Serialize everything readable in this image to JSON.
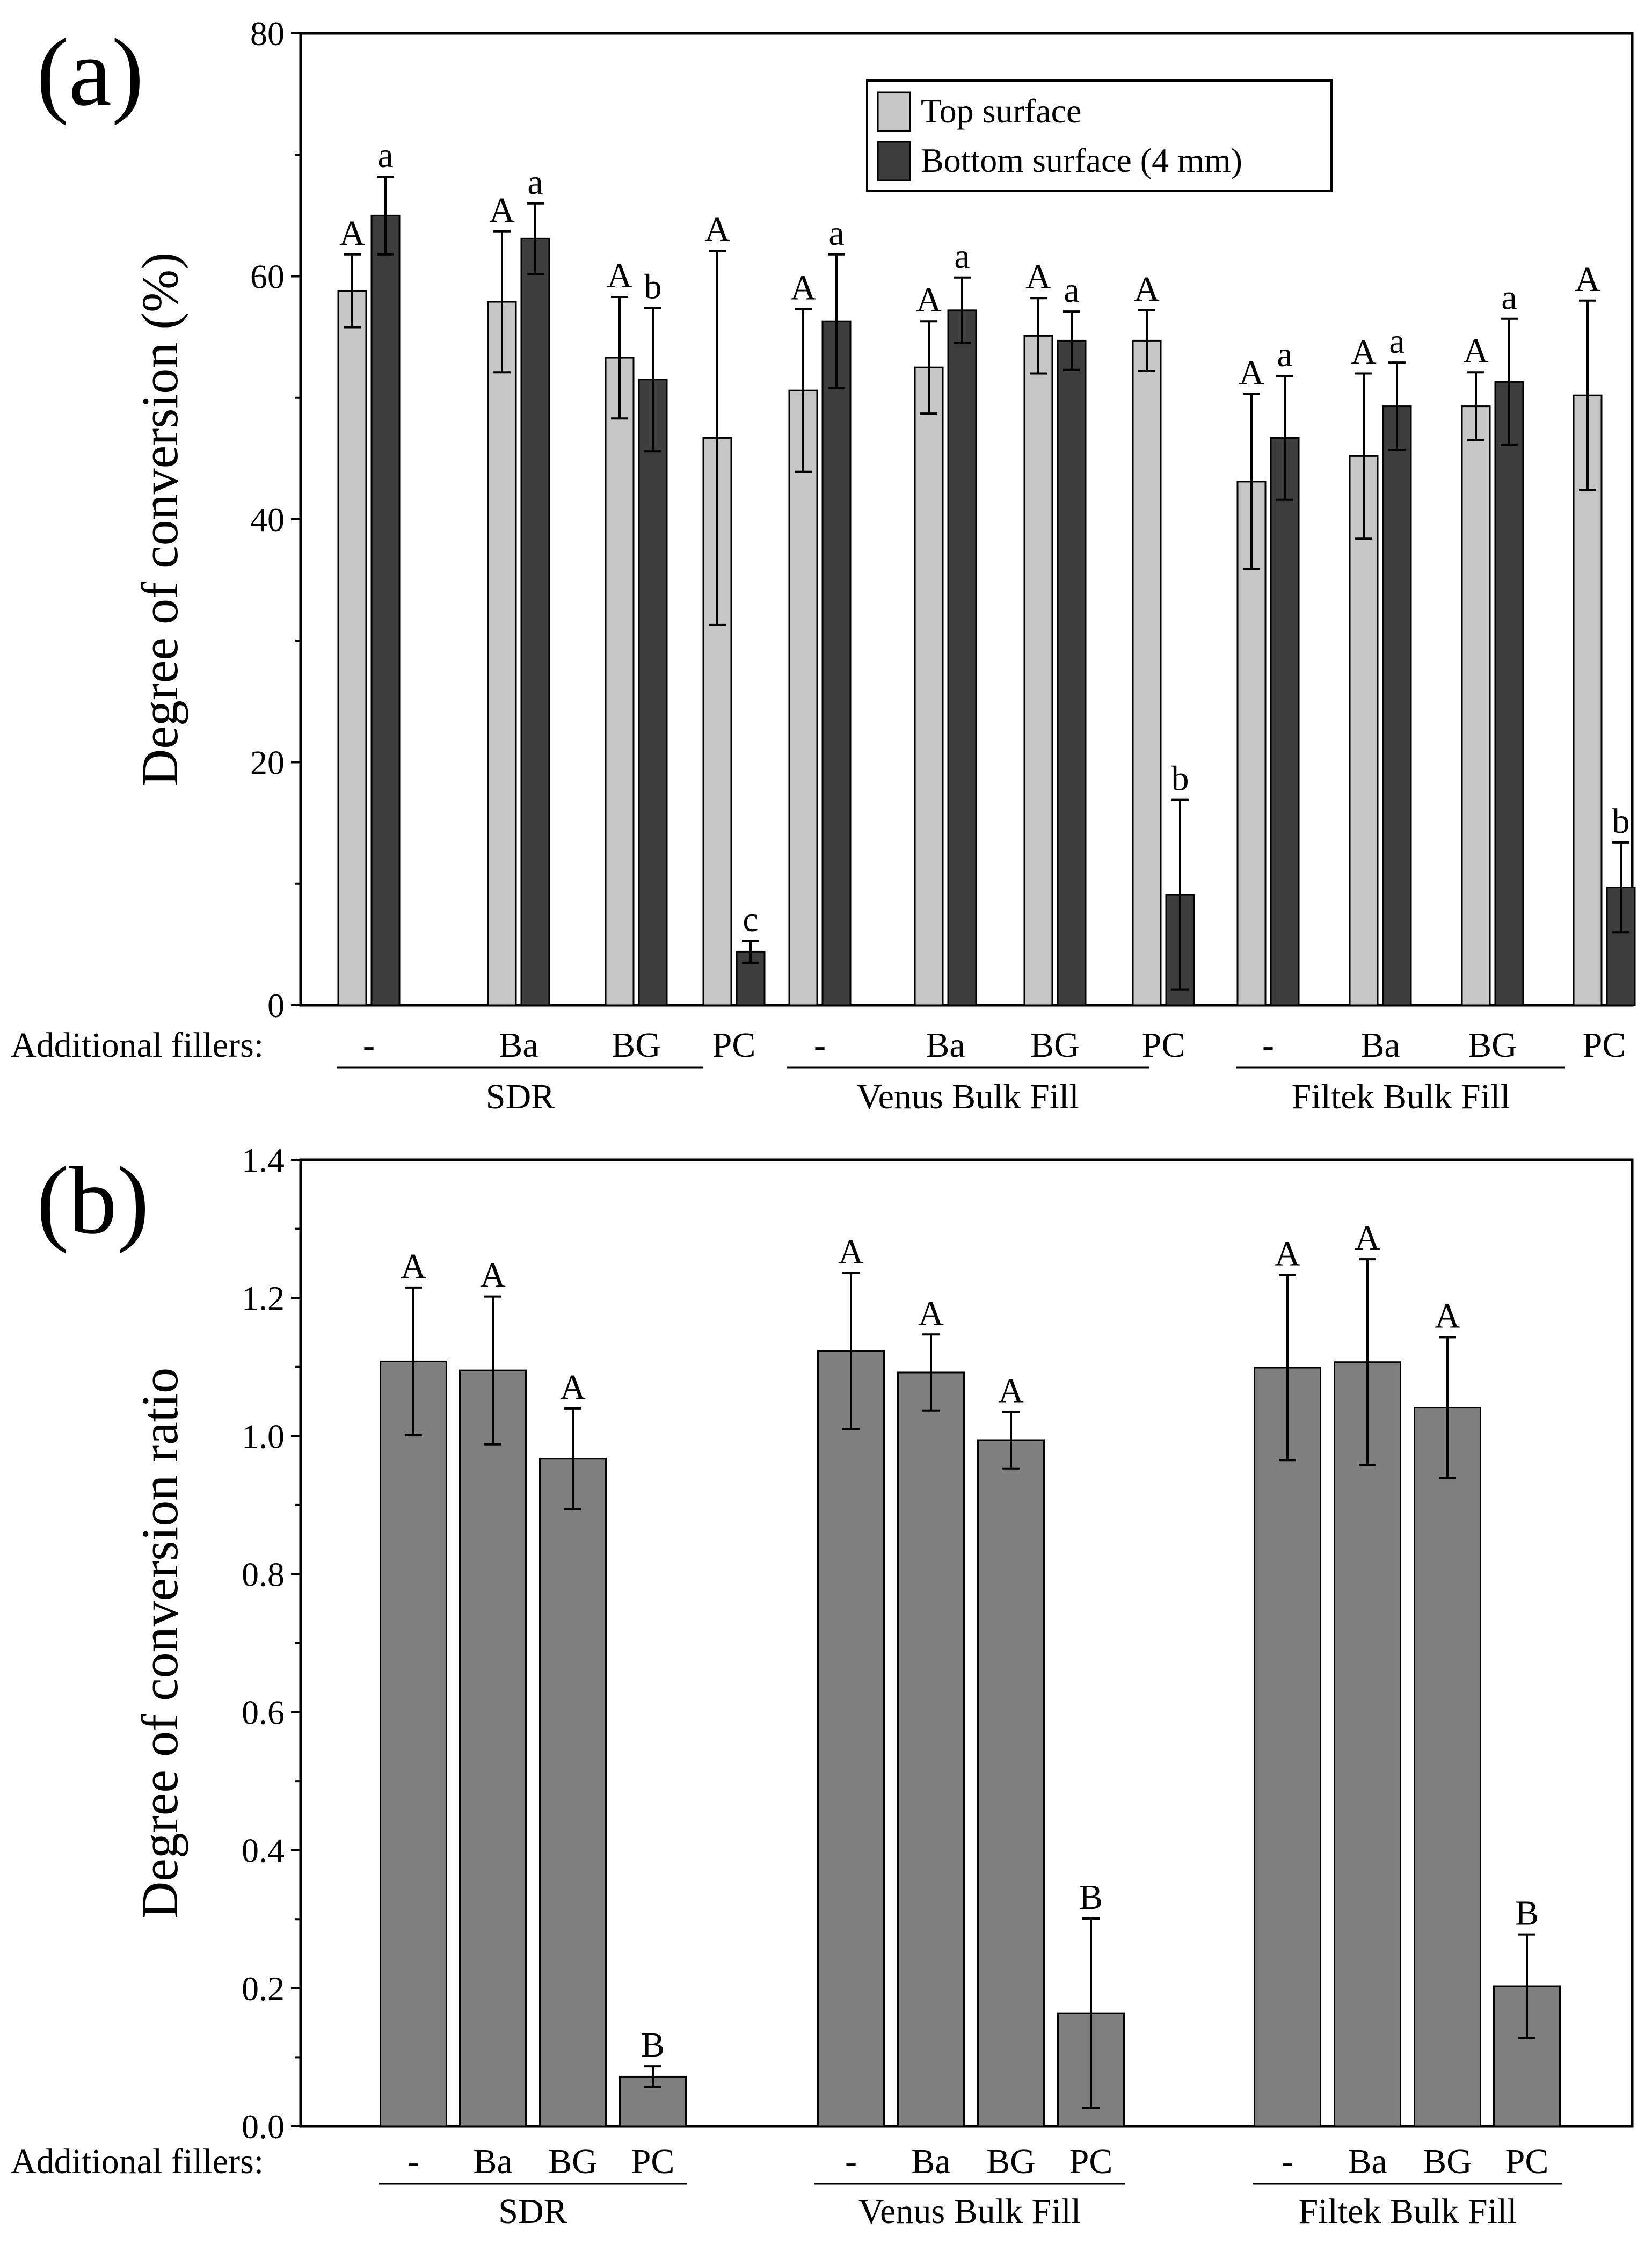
{
  "chart_data": [
    {
      "panel_label": "(a)",
      "type": "bar",
      "ylabel": "Degree of conversion (%)",
      "ylim": [
        0,
        80
      ],
      "yticks": [
        "0",
        "20",
        "40",
        "60",
        "80"
      ],
      "xaxis_prefix": "Additional fillers:",
      "groups": [
        {
          "name": "SDR",
          "categories": [
            "-",
            "Ba",
            "BG",
            "PC"
          ]
        },
        {
          "name": "Venus Bulk Fill",
          "categories": [
            "-",
            "Ba",
            "BG",
            "PC"
          ]
        },
        {
          "name": "Filtek Bulk Fill",
          "categories": [
            "-",
            "Ba",
            "BG",
            "PC"
          ]
        }
      ],
      "legend": {
        "position": "top-center",
        "entries": [
          "Top surface",
          "Bottom surface (4 mm)"
        ]
      },
      "series": [
        {
          "name": "Top surface",
          "color": "#c6c6c6",
          "values": [
            58.8,
            57.9,
            53.3,
            46.7,
            50.6,
            52.5,
            55.1,
            54.7,
            43.1,
            45.2,
            49.3,
            50.2
          ],
          "errors": [
            3.0,
            5.8,
            5.0,
            15.4,
            6.7,
            3.8,
            3.1,
            2.5,
            7.2,
            6.8,
            2.8,
            7.8
          ],
          "letters": [
            "A",
            "A",
            "A",
            "A",
            "A",
            "A",
            "A",
            "A",
            "A",
            "A",
            "A",
            "A"
          ]
        },
        {
          "name": "Bottom surface (4 mm)",
          "color": "#3d3d3d",
          "values": [
            65.0,
            63.1,
            51.5,
            4.4,
            56.3,
            57.2,
            54.7,
            9.1,
            46.7,
            49.3,
            51.3,
            9.7
          ],
          "errors": [
            3.2,
            2.9,
            5.9,
            0.9,
            5.5,
            2.7,
            2.4,
            7.8,
            5.1,
            3.6,
            5.2,
            3.7
          ],
          "letters": [
            "a",
            "a",
            "b",
            "c",
            "a",
            "a",
            "a",
            "b",
            "a",
            "a",
            "a",
            "b"
          ]
        }
      ]
    },
    {
      "panel_label": "(b)",
      "type": "bar",
      "ylabel": "Degree of conversion ratio",
      "ylim": [
        0,
        1.4
      ],
      "yticks": [
        "0.0",
        "0.2",
        "0.4",
        "0.6",
        "0.8",
        "1.0",
        "1.2",
        "1.4"
      ],
      "xaxis_prefix": "Additional fillers:",
      "groups": [
        {
          "name": "SDR",
          "categories": [
            "-",
            "Ba",
            "BG",
            "PC"
          ]
        },
        {
          "name": "Venus Bulk Fill",
          "categories": [
            "-",
            "Ba",
            "BG",
            "PC"
          ]
        },
        {
          "name": "Filtek Bulk Fill",
          "categories": [
            "-",
            "Ba",
            "BG",
            "PC"
          ]
        }
      ],
      "series": [
        {
          "name": "Degree of conversion ratio",
          "color": "#7f7f7f",
          "values": [
            1.108,
            1.095,
            0.967,
            0.072,
            1.123,
            1.092,
            0.994,
            0.164,
            1.099,
            1.107,
            1.041,
            0.203
          ],
          "errors": [
            0.107,
            0.107,
            0.073,
            0.015,
            0.113,
            0.055,
            0.041,
            0.137,
            0.134,
            0.149,
            0.102,
            0.075
          ],
          "letters": [
            "A",
            "A",
            "A",
            "B",
            "A",
            "A",
            "A",
            "B",
            "A",
            "A",
            "A",
            "B"
          ]
        }
      ]
    }
  ]
}
